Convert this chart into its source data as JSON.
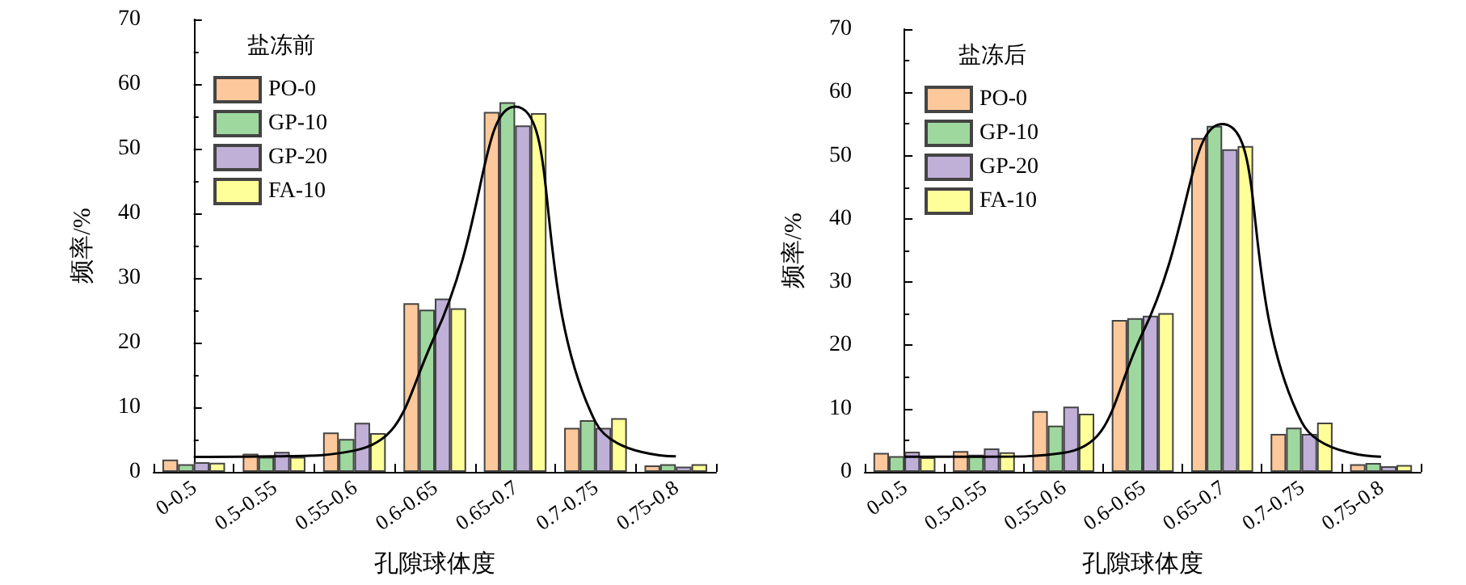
{
  "chart_data": [
    {
      "type": "bar",
      "legend_title": "盐冻前",
      "xlabel": "孔隙球体度",
      "ylabel": "频率/%",
      "categories": [
        "0-0.5",
        "0.5-0.55",
        "0.55-0.6",
        "0.6-0.65",
        "0.65-0.7",
        "0.7-0.75",
        "0.75-0.8"
      ],
      "ylim": [
        0,
        70
      ],
      "yticks": [
        0,
        10,
        20,
        30,
        40,
        50,
        60,
        70
      ],
      "legend": "top left",
      "series": [
        {
          "name": "PO-0",
          "color": "#fdc89b",
          "values": [
            1.9,
            2.8,
            6.1,
            26.1,
            55.7,
            6.8,
            1.0
          ]
        },
        {
          "name": "GP-10",
          "color": "#9fd89f",
          "values": [
            1.2,
            2.3,
            5.1,
            25.1,
            57.2,
            8.0,
            1.2
          ]
        },
        {
          "name": "GP-20",
          "color": "#c0b0d8",
          "values": [
            1.5,
            3.1,
            7.6,
            26.8,
            53.6,
            6.8,
            0.8
          ]
        },
        {
          "name": "FA-10",
          "color": "#ffff99",
          "values": [
            1.4,
            2.3,
            6.0,
            25.3,
            55.5,
            8.3,
            1.2
          ]
        },
        {
          "type": "line",
          "color": "#000000",
          "marker": "none",
          "values": [
            2.3,
            2.4,
            3.3,
            21,
            56.5,
            7.7,
            2.4
          ]
        }
      ]
    },
    {
      "type": "bar",
      "legend_title": "盐冻后",
      "xlabel": "孔隙球体度",
      "ylabel": "频率/%",
      "categories": [
        "0-0.5",
        "0.5-0.55",
        "0.55-0.6",
        "0.6-0.65",
        "0.65-0.7",
        "0.7-0.75",
        "0.75-0.8"
      ],
      "ylim": [
        0,
        70
      ],
      "yticks": [
        0,
        10,
        20,
        30,
        40,
        50,
        60,
        70
      ],
      "legend": "top left",
      "series": [
        {
          "name": "PO-0",
          "color": "#fdc89b",
          "values": [
            3.0,
            3.3,
            9.6,
            24.0,
            52.8,
            6.0,
            1.2
          ]
        },
        {
          "name": "GP-10",
          "color": "#9fd89f",
          "values": [
            2.5,
            2.7,
            7.3,
            24.3,
            54.7,
            7.0,
            1.4
          ]
        },
        {
          "name": "GP-20",
          "color": "#c0b0d8",
          "values": [
            3.2,
            3.7,
            10.3,
            24.7,
            51.0,
            6.0,
            0.9
          ]
        },
        {
          "name": "FA-10",
          "color": "#ffff99",
          "values": [
            2.3,
            3.1,
            9.2,
            25.1,
            51.5,
            7.8,
            1.1
          ]
        },
        {
          "type": "line",
          "color": "#000000",
          "marker": "none",
          "values": [
            2.4,
            2.4,
            3.0,
            22,
            55,
            7.9,
            2.4
          ]
        }
      ]
    }
  ]
}
